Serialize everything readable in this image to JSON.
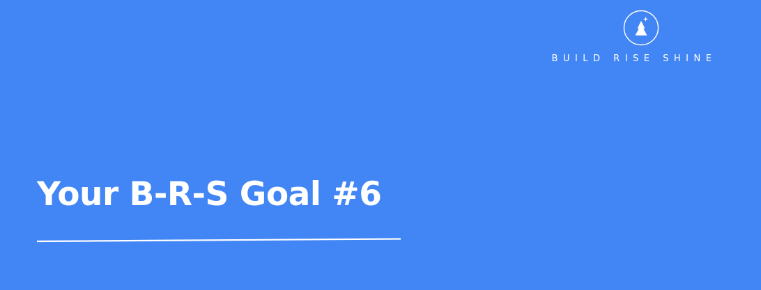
{
  "theme": {
    "background": "#4286f5",
    "foreground": "#ffffff"
  },
  "logo": {
    "icon": "tree-sparkle-icon",
    "brand_text": "BUILD RISE SHINE"
  },
  "headline": "Your B-R-S Goal #6"
}
